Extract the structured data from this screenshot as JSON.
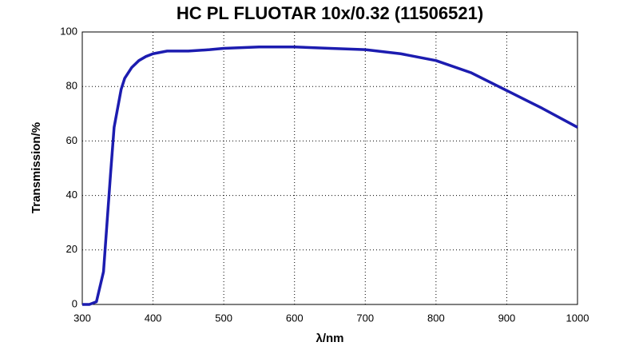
{
  "chart_data": {
    "type": "line",
    "title": "HC PL FLUOTAR 10x/0.32 (11506521)",
    "x_label": "λ/nm",
    "y_label": "Transmission/%",
    "x": [
      300,
      310,
      320,
      330,
      335,
      340,
      345,
      350,
      355,
      360,
      370,
      380,
      390,
      400,
      420,
      450,
      480,
      500,
      550,
      600,
      650,
      700,
      750,
      800,
      850,
      900,
      950,
      1000
    ],
    "series": [
      {
        "name": "Transmission",
        "color": "#1c1cb0",
        "values": [
          0,
          0,
          1,
          12,
          30,
          48,
          65,
          72,
          79,
          83,
          87,
          89.5,
          91,
          92,
          93,
          93,
          93.5,
          94,
          94.5,
          94.5,
          94,
          93.5,
          92,
          89.5,
          85,
          78.5,
          72,
          65
        ]
      }
    ],
    "xlim": [
      300,
      1000
    ],
    "xticks": [
      300,
      400,
      500,
      600,
      700,
      800,
      900,
      1000
    ],
    "ylim": [
      0,
      100
    ],
    "yticks": [
      0,
      20,
      40,
      60,
      80,
      100
    ],
    "grid": true
  }
}
